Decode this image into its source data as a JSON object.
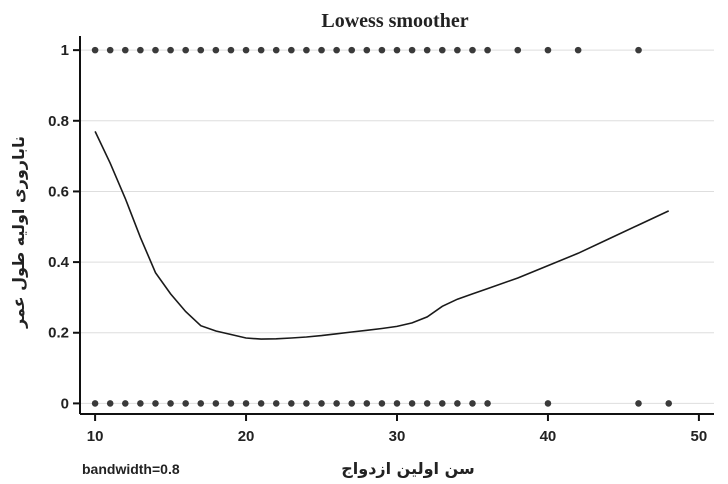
{
  "chart_data": {
    "type": "scatter",
    "title": "Lowess smoother",
    "xlabel": "سن اولین ازدواج",
    "ylabel": "ناباروری اولیه طول عمر",
    "note": "bandwidth=0.8",
    "xlim": [
      9,
      51
    ],
    "ylim": [
      -0.03,
      1.04
    ],
    "xticks": [
      "10",
      "20",
      "30",
      "40",
      "50"
    ],
    "yticks": [
      "0",
      "0.2",
      "0.4",
      "0.6",
      "0.8",
      "1"
    ],
    "grid": true,
    "series": [
      {
        "marker": "dot",
        "points_y1_x": [
          10,
          11,
          12,
          13,
          14,
          15,
          16,
          17,
          18,
          19,
          20,
          21,
          22,
          23,
          24,
          25,
          26,
          27,
          28,
          29,
          30,
          31,
          32,
          33,
          34,
          35,
          36,
          38,
          40,
          42,
          46
        ],
        "points_y0_x": [
          10,
          11,
          12,
          13,
          14,
          15,
          16,
          17,
          18,
          19,
          20,
          21,
          22,
          23,
          24,
          25,
          26,
          27,
          28,
          29,
          30,
          31,
          32,
          33,
          34,
          35,
          36,
          40,
          46,
          48
        ]
      },
      {
        "marker": "line",
        "x": [
          10,
          11,
          12,
          13,
          14,
          15,
          16,
          17,
          18,
          19,
          20,
          21,
          22,
          23,
          24,
          25,
          26,
          27,
          28,
          29,
          30,
          31,
          32,
          33,
          34,
          35,
          36,
          38,
          40,
          42,
          44,
          46,
          48
        ],
        "y": [
          0.77,
          0.68,
          0.58,
          0.47,
          0.37,
          0.31,
          0.26,
          0.22,
          0.205,
          0.195,
          0.185,
          0.182,
          0.183,
          0.185,
          0.188,
          0.192,
          0.197,
          0.202,
          0.207,
          0.212,
          0.218,
          0.228,
          0.245,
          0.275,
          0.295,
          0.31,
          0.325,
          0.355,
          0.39,
          0.425,
          0.465,
          0.505,
          0.545
        ]
      }
    ]
  }
}
